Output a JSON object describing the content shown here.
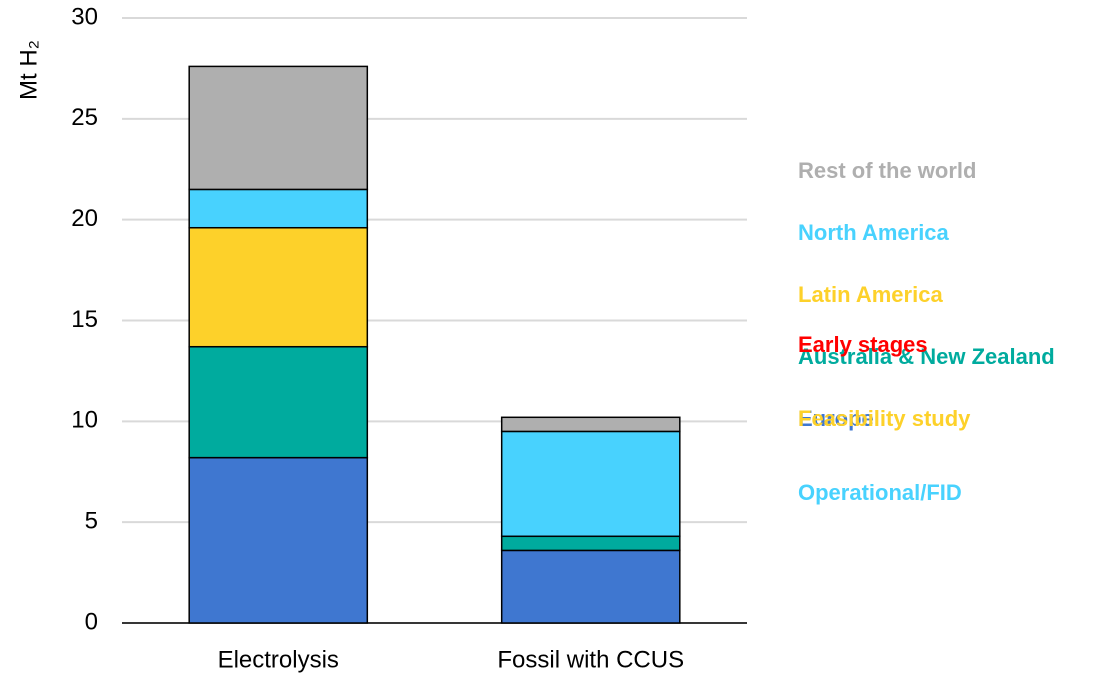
{
  "chart_data": {
    "type": "stacked_bar",
    "y_label": "Mt H₂",
    "categories": [
      "Electrolysis",
      "Fossil with CCUS"
    ],
    "series": [
      {
        "name": "Europe",
        "color": "#3f77d0",
        "values": [
          8.2,
          3.6
        ]
      },
      {
        "name": "Australia & New Zealand",
        "color": "#00ab9e",
        "values": [
          5.5,
          0.7
        ]
      },
      {
        "name": "Latin America",
        "color": "#fdd12a",
        "values": [
          5.9,
          0
        ]
      },
      {
        "name": "North America",
        "color": "#48d2fe",
        "values": [
          1.9,
          5.2
        ]
      },
      {
        "name": "Rest of the world",
        "color": "#afafaf",
        "values": [
          6.1,
          0.7
        ]
      }
    ],
    "annotations": [
      {
        "text": "Early stages",
        "color": "#ff0000"
      },
      {
        "text": "Feasibility study",
        "color": "#fdd12a"
      },
      {
        "text": "Operational/FID",
        "color": "#48d2fe"
      }
    ],
    "ylim": [
      0,
      30
    ],
    "yticks": [
      0,
      5,
      10,
      15,
      20,
      25,
      30
    ],
    "grid": true
  }
}
